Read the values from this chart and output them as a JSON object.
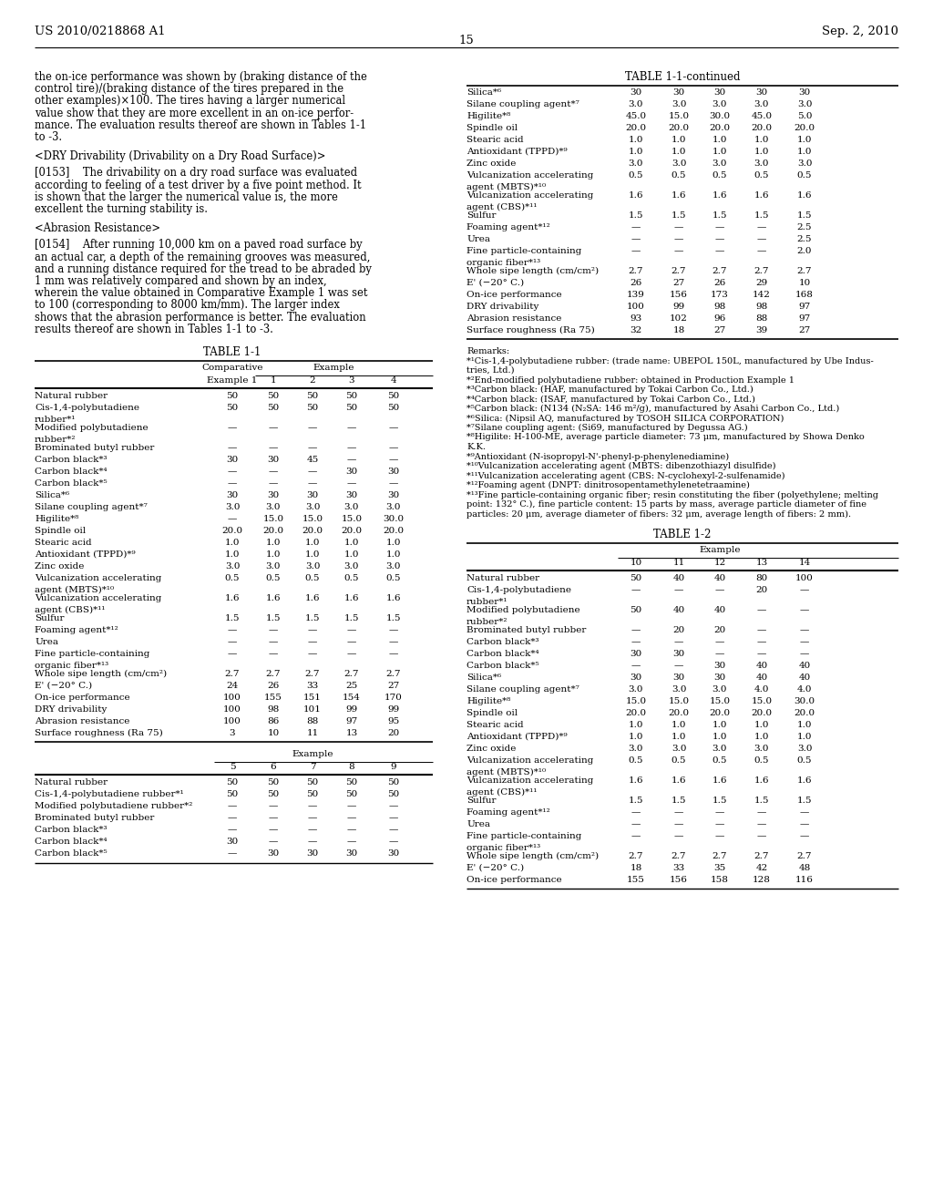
{
  "header_left": "US 2010/0218868 A1",
  "header_right": "Sep. 2, 2010",
  "page_number": "15",
  "left_para1": [
    "the on-ice performance was shown by (braking distance of the",
    "control tire)/(braking distance of the tires prepared in the",
    "other examples)×100. The tires having a larger numerical",
    "value show that they are more excellent in an on-ice perfor-",
    "mance. The evaluation results thereof are shown in Tables 1-1",
    "to -3."
  ],
  "left_heading1": "<DRY Drivability (Drivability on a Dry Road Surface)>",
  "left_para2": [
    "[0153]    The drivability on a dry road surface was evaluated",
    "according to feeling of a test driver by a five point method. It",
    "is shown that the larger the numerical value is, the more",
    "excellent the turning stability is."
  ],
  "left_heading2": "<Abrasion Resistance>",
  "left_para3": [
    "[0154]    After running 10,000 km on a paved road surface by",
    "an actual car, a depth of the remaining grooves was measured,",
    "and a running distance required for the tread to be abraded by",
    "1 mm was relatively compared and shown by an index,",
    "wherein the value obtained in Comparative Example 1 was set",
    "to 100 (corresponding to 8000 km/mm). The larger index",
    "shows that the abrasion performance is better. The evaluation",
    "results thereof are shown in Tables 1-1 to -3."
  ],
  "table11_rows": [
    [
      "Natural rubber",
      "50",
      "50",
      "50",
      "50",
      "50"
    ],
    [
      "Cis-1,4-polybutadiene\nrubber*¹",
      "50",
      "50",
      "50",
      "50",
      "50"
    ],
    [
      "Modified polybutadiene\nrubber*²",
      "—",
      "—",
      "—",
      "—",
      "—"
    ],
    [
      "Brominated butyl rubber",
      "—",
      "—",
      "—",
      "—",
      "—"
    ],
    [
      "Carbon black*³",
      "30",
      "30",
      "45",
      "—",
      "—"
    ],
    [
      "Carbon black*⁴",
      "—",
      "—",
      "—",
      "30",
      "30"
    ],
    [
      "Carbon black*⁵",
      "—",
      "—",
      "—",
      "—",
      "—"
    ],
    [
      "Silica*⁶",
      "30",
      "30",
      "30",
      "30",
      "30"
    ],
    [
      "Silane coupling agent*⁷",
      "3.0",
      "3.0",
      "3.0",
      "3.0",
      "3.0"
    ],
    [
      "Higilite*⁸",
      "—",
      "15.0",
      "15.0",
      "15.0",
      "30.0"
    ],
    [
      "Spindle oil",
      "20.0",
      "20.0",
      "20.0",
      "20.0",
      "20.0"
    ],
    [
      "Stearic acid",
      "1.0",
      "1.0",
      "1.0",
      "1.0",
      "1.0"
    ],
    [
      "Antioxidant (TPPD)*⁹",
      "1.0",
      "1.0",
      "1.0",
      "1.0",
      "1.0"
    ],
    [
      "Zinc oxide",
      "3.0",
      "3.0",
      "3.0",
      "3.0",
      "3.0"
    ],
    [
      "Vulcanization accelerating\nagent (MBTS)*¹⁰",
      "0.5",
      "0.5",
      "0.5",
      "0.5",
      "0.5"
    ],
    [
      "Vulcanization accelerating\nagent (CBS)*¹¹",
      "1.6",
      "1.6",
      "1.6",
      "1.6",
      "1.6"
    ],
    [
      "Sulfur",
      "1.5",
      "1.5",
      "1.5",
      "1.5",
      "1.5"
    ],
    [
      "Foaming agent*¹²",
      "—",
      "—",
      "—",
      "—",
      "—"
    ],
    [
      "Urea",
      "—",
      "—",
      "—",
      "—",
      "—"
    ],
    [
      "Fine particle-containing\norganic fiber*¹³",
      "—",
      "—",
      "—",
      "—",
      "—"
    ],
    [
      "Whole sipe length (cm/cm²)",
      "2.7",
      "2.7",
      "2.7",
      "2.7",
      "2.7"
    ],
    [
      "E' (−20° C.)",
      "24",
      "26",
      "33",
      "25",
      "27"
    ],
    [
      "On-ice performance",
      "100",
      "155",
      "151",
      "154",
      "170"
    ],
    [
      "DRY drivability",
      "100",
      "98",
      "101",
      "99",
      "99"
    ],
    [
      "Abrasion resistance",
      "100",
      "86",
      "88",
      "97",
      "95"
    ],
    [
      "Surface roughness (Ra 75)",
      "3",
      "10",
      "11",
      "13",
      "20"
    ]
  ],
  "table11_cont_left_rows": [
    [
      "Natural rubber",
      "50",
      "50",
      "50",
      "50",
      "50"
    ],
    [
      "Cis-1,4-polybutadiene rubber*¹",
      "50",
      "50",
      "50",
      "50",
      "50"
    ],
    [
      "Modified polybutadiene rubber*²",
      "—",
      "—",
      "—",
      "—",
      "—"
    ],
    [
      "Brominated butyl rubber",
      "—",
      "—",
      "—",
      "—",
      "—"
    ],
    [
      "Carbon black*³",
      "—",
      "—",
      "—",
      "—",
      "—"
    ],
    [
      "Carbon black*⁴",
      "30",
      "—",
      "—",
      "—",
      "—"
    ],
    [
      "Carbon black*⁵",
      "—",
      "30",
      "30",
      "30",
      "30"
    ]
  ],
  "table11_cont_right_rows": [
    [
      "Silica*⁶",
      "30",
      "30",
      "30",
      "30",
      "30"
    ],
    [
      "Silane coupling agent*⁷",
      "3.0",
      "3.0",
      "3.0",
      "3.0",
      "3.0"
    ],
    [
      "Higilite*⁸",
      "45.0",
      "15.0",
      "30.0",
      "45.0",
      "5.0"
    ],
    [
      "Spindle oil",
      "20.0",
      "20.0",
      "20.0",
      "20.0",
      "20.0"
    ],
    [
      "Stearic acid",
      "1.0",
      "1.0",
      "1.0",
      "1.0",
      "1.0"
    ],
    [
      "Antioxidant (TPPD)*⁹",
      "1.0",
      "1.0",
      "1.0",
      "1.0",
      "1.0"
    ],
    [
      "Zinc oxide",
      "3.0",
      "3.0",
      "3.0",
      "3.0",
      "3.0"
    ],
    [
      "Vulcanization accelerating\nagent (MBTS)*¹⁰",
      "0.5",
      "0.5",
      "0.5",
      "0.5",
      "0.5"
    ],
    [
      "Vulcanization accelerating\nagent (CBS)*¹¹",
      "1.6",
      "1.6",
      "1.6",
      "1.6",
      "1.6"
    ],
    [
      "Sulfur",
      "1.5",
      "1.5",
      "1.5",
      "1.5",
      "1.5"
    ],
    [
      "Foaming agent*¹²",
      "—",
      "—",
      "—",
      "—",
      "2.5"
    ],
    [
      "Urea",
      "—",
      "—",
      "—",
      "—",
      "2.5"
    ],
    [
      "Fine particle-containing\norganic fiber*¹³",
      "—",
      "—",
      "—",
      "—",
      "2.0"
    ],
    [
      "Whole sipe length (cm/cm²)",
      "2.7",
      "2.7",
      "2.7",
      "2.7",
      "2.7"
    ],
    [
      "E' (−20° C.)",
      "26",
      "27",
      "26",
      "29",
      "10"
    ],
    [
      "On-ice performance",
      "139",
      "156",
      "173",
      "142",
      "168"
    ],
    [
      "DRY drivability",
      "100",
      "99",
      "98",
      "98",
      "97"
    ],
    [
      "Abrasion resistance",
      "93",
      "102",
      "96",
      "88",
      "97"
    ],
    [
      "Surface roughness (Ra 75)",
      "32",
      "18",
      "27",
      "39",
      "27"
    ]
  ],
  "remarks_lines": [
    "Remarks:",
    "*¹Cis-1,4-polybutadiene rubber: (trade name: UBEPOL 150L, manufactured by Ube Indus-",
    "tries, Ltd.)",
    "*²End-modified polybutadiene rubber: obtained in Production Example 1",
    "*³Carbon black: (HAF, manufactured by Tokai Carbon Co., Ltd.)",
    "*⁴Carbon black: (ISAF, manufactured by Tokai Carbon Co., Ltd.)",
    "*⁵Carbon black: (N134 (N₂SA: 146 m²/g), manufactured by Asahi Carbon Co., Ltd.)",
    "*⁶Silica: (Nipsil AQ, manufactured by TOSOH SILICA CORPORATION)",
    "*⁷Silane coupling agent: (Si69, manufactured by Degussa AG.)",
    "*⁸Higilite: H-100-ME, average particle diameter: 73 μm, manufactured by Showa Denko",
    "K.K.",
    "*⁹Antioxidant (N-isopropyl-N'-phenyl-p-phenylenediamine)",
    "*¹⁰Vulcanization accelerating agent (MBTS: dibenzothiazyl disulfide)",
    "*¹¹Vulcanization accelerating agent (CBS: N-cyclohexyl-2-sulfenamide)",
    "*¹²Foaming agent (DNPT: dinitrosopentamethylenetetraamine)",
    "*¹³Fine particle-containing organic fiber; resin constituting the fiber (polyethylene; melting",
    "point: 132° C.), fine particle content: 15 parts by mass, average particle diameter of fine",
    "particles: 20 μm, average diameter of fibers: 32 μm, average length of fibers: 2 mm)."
  ],
  "table12_rows": [
    [
      "Natural rubber",
      "50",
      "40",
      "40",
      "80",
      "100"
    ],
    [
      "Cis-1,4-polybutadiene\nrubber*¹",
      "—",
      "—",
      "—",
      "20",
      "—"
    ],
    [
      "Modified polybutadiene\nrubber*²",
      "50",
      "40",
      "40",
      "—",
      "—"
    ],
    [
      "Brominated butyl rubber",
      "—",
      "20",
      "20",
      "—",
      "—"
    ],
    [
      "Carbon black*³",
      "—",
      "—",
      "—",
      "—",
      "—"
    ],
    [
      "Carbon black*⁴",
      "30",
      "30",
      "—",
      "—",
      "—"
    ],
    [
      "Carbon black*⁵",
      "—",
      "—",
      "30",
      "40",
      "40"
    ],
    [
      "Silica*⁶",
      "30",
      "30",
      "30",
      "40",
      "40"
    ],
    [
      "Silane coupling agent*⁷",
      "3.0",
      "3.0",
      "3.0",
      "4.0",
      "4.0"
    ],
    [
      "Higilite*⁸",
      "15.0",
      "15.0",
      "15.0",
      "15.0",
      "30.0"
    ],
    [
      "Spindle oil",
      "20.0",
      "20.0",
      "20.0",
      "20.0",
      "20.0"
    ],
    [
      "Stearic acid",
      "1.0",
      "1.0",
      "1.0",
      "1.0",
      "1.0"
    ],
    [
      "Antioxidant (TPPD)*⁹",
      "1.0",
      "1.0",
      "1.0",
      "1.0",
      "1.0"
    ],
    [
      "Zinc oxide",
      "3.0",
      "3.0",
      "3.0",
      "3.0",
      "3.0"
    ],
    [
      "Vulcanization accelerating\nagent (MBTS)*¹⁰",
      "0.5",
      "0.5",
      "0.5",
      "0.5",
      "0.5"
    ],
    [
      "Vulcanization accelerating\nagent (CBS)*¹¹",
      "1.6",
      "1.6",
      "1.6",
      "1.6",
      "1.6"
    ],
    [
      "Sulfur",
      "1.5",
      "1.5",
      "1.5",
      "1.5",
      "1.5"
    ],
    [
      "Foaming agent*¹²",
      "—",
      "—",
      "—",
      "—",
      "—"
    ],
    [
      "Urea",
      "—",
      "—",
      "—",
      "—",
      "—"
    ],
    [
      "Fine particle-containing\norganic fiber*¹³",
      "—",
      "—",
      "—",
      "—",
      "—"
    ],
    [
      "Whole sipe length (cm/cm²)",
      "2.7",
      "2.7",
      "2.7",
      "2.7",
      "2.7"
    ],
    [
      "E' (−20° C.)",
      "18",
      "33",
      "35",
      "42",
      "48"
    ],
    [
      "On-ice performance",
      "155",
      "156",
      "158",
      "128",
      "116"
    ]
  ]
}
